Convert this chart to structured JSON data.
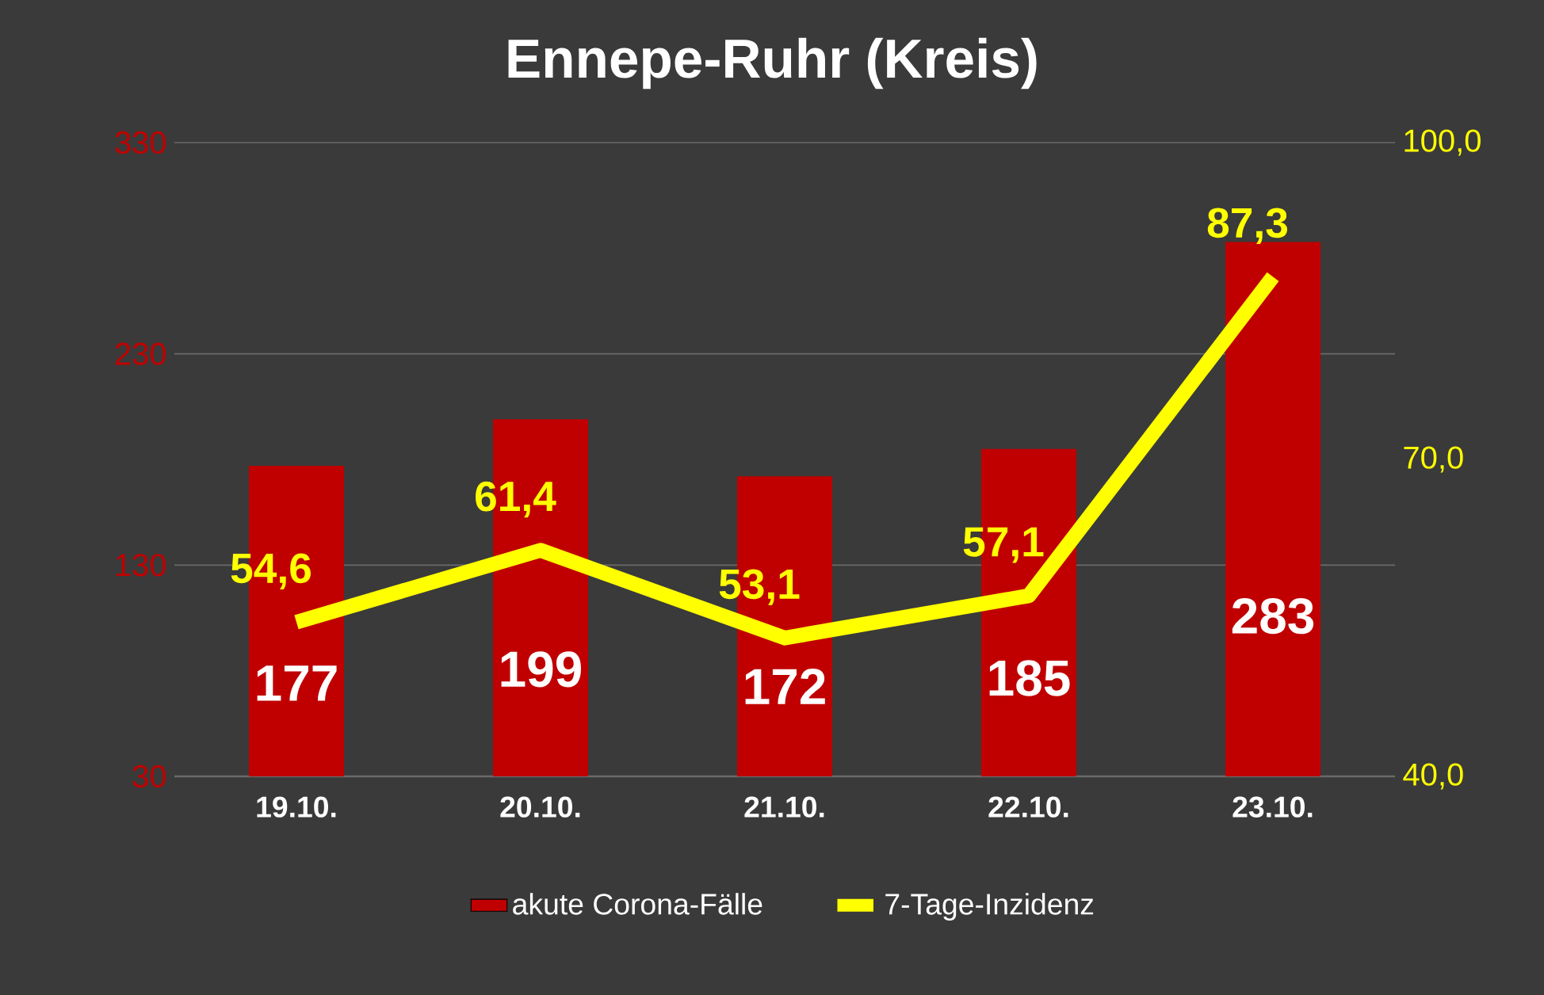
{
  "chart_data": {
    "type": "bar",
    "title": "Ennepe-Ruhr (Kreis)",
    "categories": [
      "19.10.",
      "20.10.",
      "21.10.",
      "22.10.",
      "23.10."
    ],
    "series": [
      {
        "name": "akute Corona-Fälle",
        "color": "#c00000",
        "values": [
          177,
          199,
          172,
          185,
          283
        ],
        "value_labels": [
          "177",
          "199",
          "172",
          "185",
          "283"
        ]
      },
      {
        "name": "7-Tage-Inzidenz",
        "type": "line",
        "axis": "y2",
        "color": "#ffff00",
        "values": [
          54.6,
          61.4,
          53.1,
          57.1,
          87.3
        ],
        "value_labels": [
          "54,6",
          "61,4",
          "53,1",
          "57,1",
          "87,3"
        ]
      }
    ],
    "ylim": [
      30,
      330
    ],
    "yticks": [
      30,
      130,
      230,
      330
    ],
    "y2lim": [
      40,
      100
    ],
    "y2ticks": [
      {
        "value": 40,
        "label": "40,0"
      },
      {
        "value": 70,
        "label": "70,0"
      },
      {
        "value": 100,
        "label": "100,0"
      }
    ],
    "grid": "y",
    "legend": "bottom"
  }
}
